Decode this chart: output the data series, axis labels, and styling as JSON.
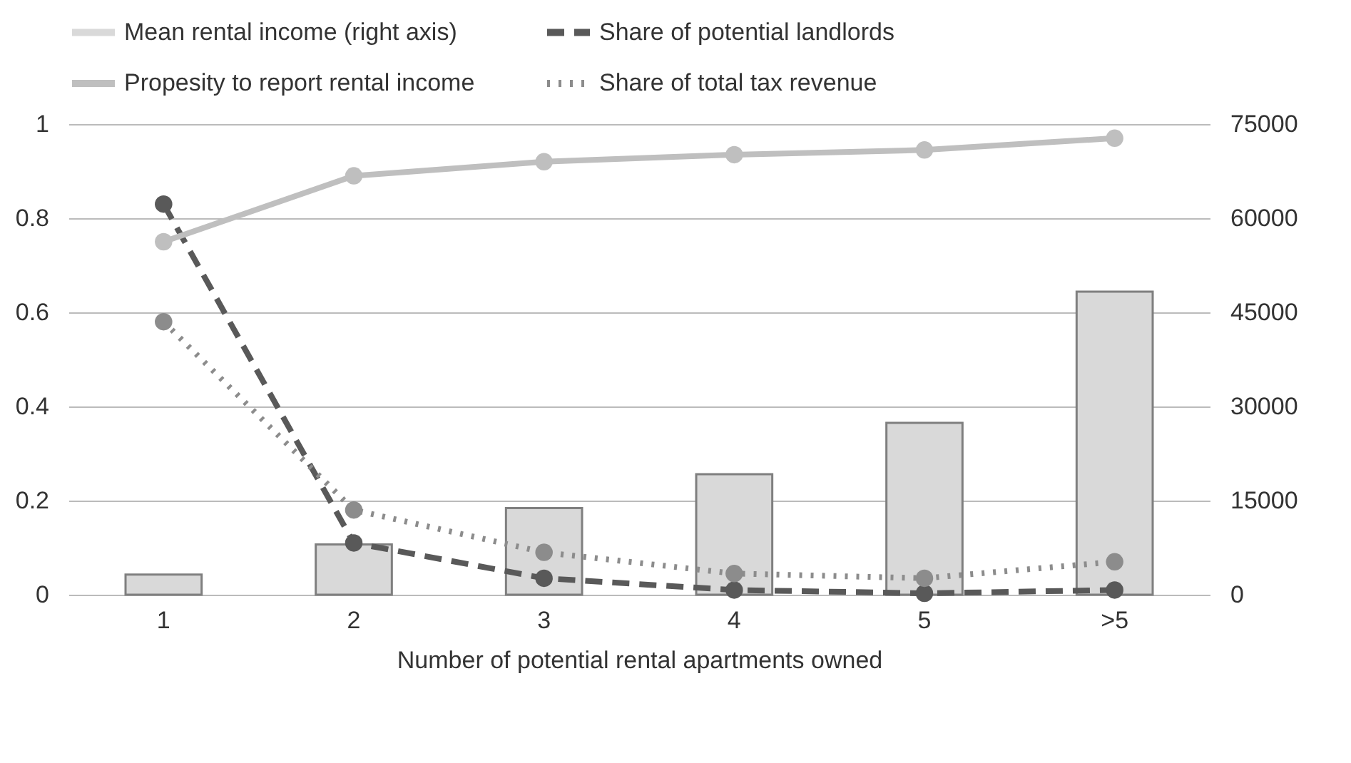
{
  "chart_data": {
    "type": "line",
    "xlabel": "Number of potential rental apartments owned",
    "categories": [
      "1",
      "2",
      "3",
      "4",
      "5",
      ">5"
    ],
    "series": [
      {
        "name": "Mean rental income (right axis)",
        "type": "bar",
        "axis": "y2",
        "color": "#d9d9d9",
        "values": [
          3200,
          8000,
          13800,
          19200,
          27400,
          48300
        ]
      },
      {
        "name": "Share of potential landlords",
        "color": "#595959",
        "line_style": "dashed",
        "values": [
          0.83,
          0.11,
          0.035,
          0.01,
          0.003,
          0.01
        ]
      },
      {
        "name": "Propesity to report rental income",
        "color": "#bfbfbf",
        "line_style": "solid",
        "values": [
          0.75,
          0.89,
          0.92,
          0.935,
          0.945,
          0.97
        ]
      },
      {
        "name": "Share of total tax revenue",
        "color": "#8c8c8c",
        "line_style": "dotted",
        "values": [
          0.58,
          0.18,
          0.09,
          0.045,
          0.035,
          0.07
        ]
      }
    ],
    "ylim": [
      0,
      1
    ],
    "yticks": [
      0,
      0.2,
      0.4,
      0.6,
      0.8,
      1
    ],
    "y2lim": [
      0,
      75000
    ],
    "y2ticks": [
      0,
      15000,
      30000,
      45000,
      60000,
      75000
    ],
    "grid": "y",
    "legend": "top",
    "marker": "circle"
  }
}
